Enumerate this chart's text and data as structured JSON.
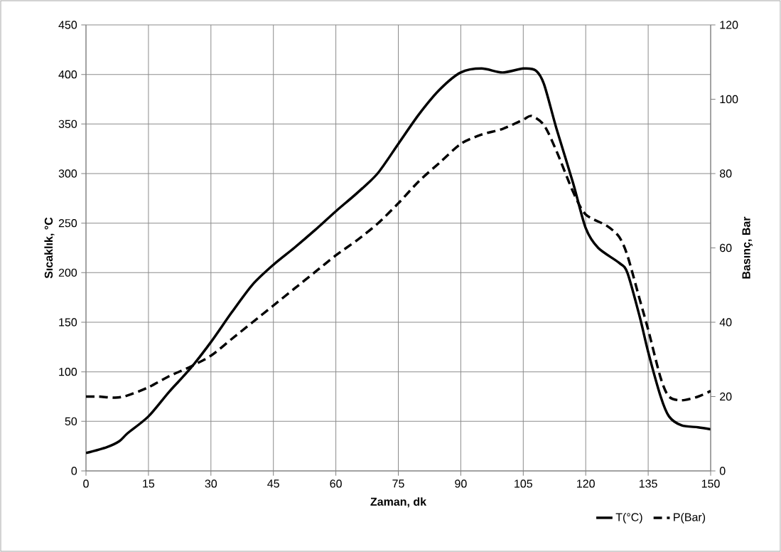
{
  "chart_data": {
    "type": "line",
    "xlabel": "Zaman, dk",
    "ylabel": "Sıcaklık, °C",
    "y2label": "Basınç, Bar",
    "xlim": [
      0,
      150
    ],
    "xticks": [
      0,
      15,
      30,
      45,
      60,
      75,
      90,
      105,
      120,
      135,
      150
    ],
    "ylim": [
      0,
      450
    ],
    "yticks": [
      0,
      50,
      100,
      150,
      200,
      250,
      300,
      350,
      400,
      450
    ],
    "y2lim": [
      0,
      120
    ],
    "y2ticks": [
      0,
      20,
      40,
      60,
      80,
      100,
      120
    ],
    "grid": true,
    "legend": "bottom right",
    "series": [
      {
        "name": "T(°C)",
        "color": "#000000",
        "line_style": "solid",
        "x": [
          0,
          5,
          8,
          10,
          15,
          20,
          25,
          30,
          35,
          40,
          45,
          50,
          55,
          60,
          65,
          70,
          75,
          80,
          85,
          90,
          95,
          100,
          105,
          108,
          110,
          113,
          117,
          120,
          123,
          128,
          130,
          133,
          135,
          138,
          140,
          143,
          147,
          150
        ],
        "values": [
          18,
          24,
          30,
          38,
          55,
          80,
          103,
          130,
          160,
          188,
          208,
          225,
          243,
          262,
          280,
          300,
          330,
          360,
          385,
          402,
          406,
          402,
          406,
          404,
          390,
          345,
          290,
          245,
          225,
          210,
          200,
          155,
          120,
          75,
          55,
          46,
          44,
          42
        ]
      },
      {
        "name": "P(Bar)",
        "color": "#000000",
        "line_style": "dashed",
        "axis": "y2",
        "x": [
          0,
          3,
          7,
          10,
          15,
          20,
          25,
          30,
          35,
          40,
          45,
          50,
          55,
          60,
          65,
          70,
          75,
          80,
          85,
          90,
          95,
          100,
          105,
          107,
          110,
          113,
          117,
          120,
          125,
          128,
          130,
          133,
          135,
          138,
          140,
          143,
          147,
          150
        ],
        "values": [
          20,
          20,
          19.7,
          20.3,
          22.5,
          25.5,
          28,
          31,
          35.5,
          40,
          44.5,
          49,
          53.5,
          58,
          62,
          66.5,
          72,
          78,
          83,
          88,
          90.5,
          92,
          94.5,
          95.5,
          93,
          86,
          75,
          69,
          66,
          63,
          58,
          46,
          38,
          25,
          20,
          19,
          20,
          21.5
        ]
      }
    ]
  }
}
